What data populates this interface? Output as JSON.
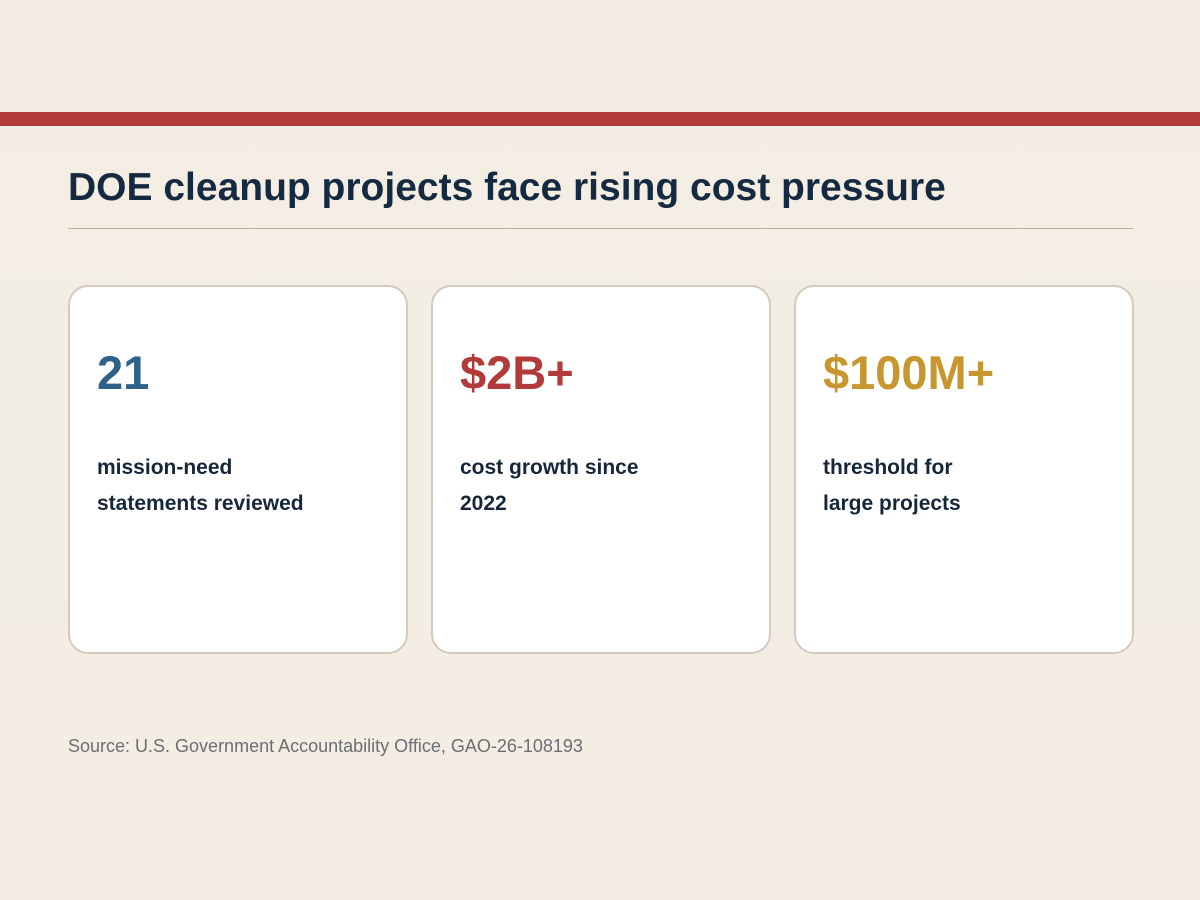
{
  "colors": {
    "accent_band": "#b23a3a",
    "stat_blue": "#2f6288",
    "stat_red": "#b23a3a",
    "stat_gold": "#c8962f",
    "title_text": "#152a40"
  },
  "title": "DOE cleanup projects face rising cost pressure",
  "cards": [
    {
      "value": "21",
      "description_lines": [
        "mission-need",
        "statements reviewed"
      ]
    },
    {
      "value": "$2B+",
      "description_lines": [
        "cost growth since",
        "2022"
      ]
    },
    {
      "value": "$100M+",
      "description_lines": [
        "threshold for",
        "large projects"
      ]
    }
  ],
  "source": "Source: U.S. Government Accountability Office, GAO-26-108193"
}
